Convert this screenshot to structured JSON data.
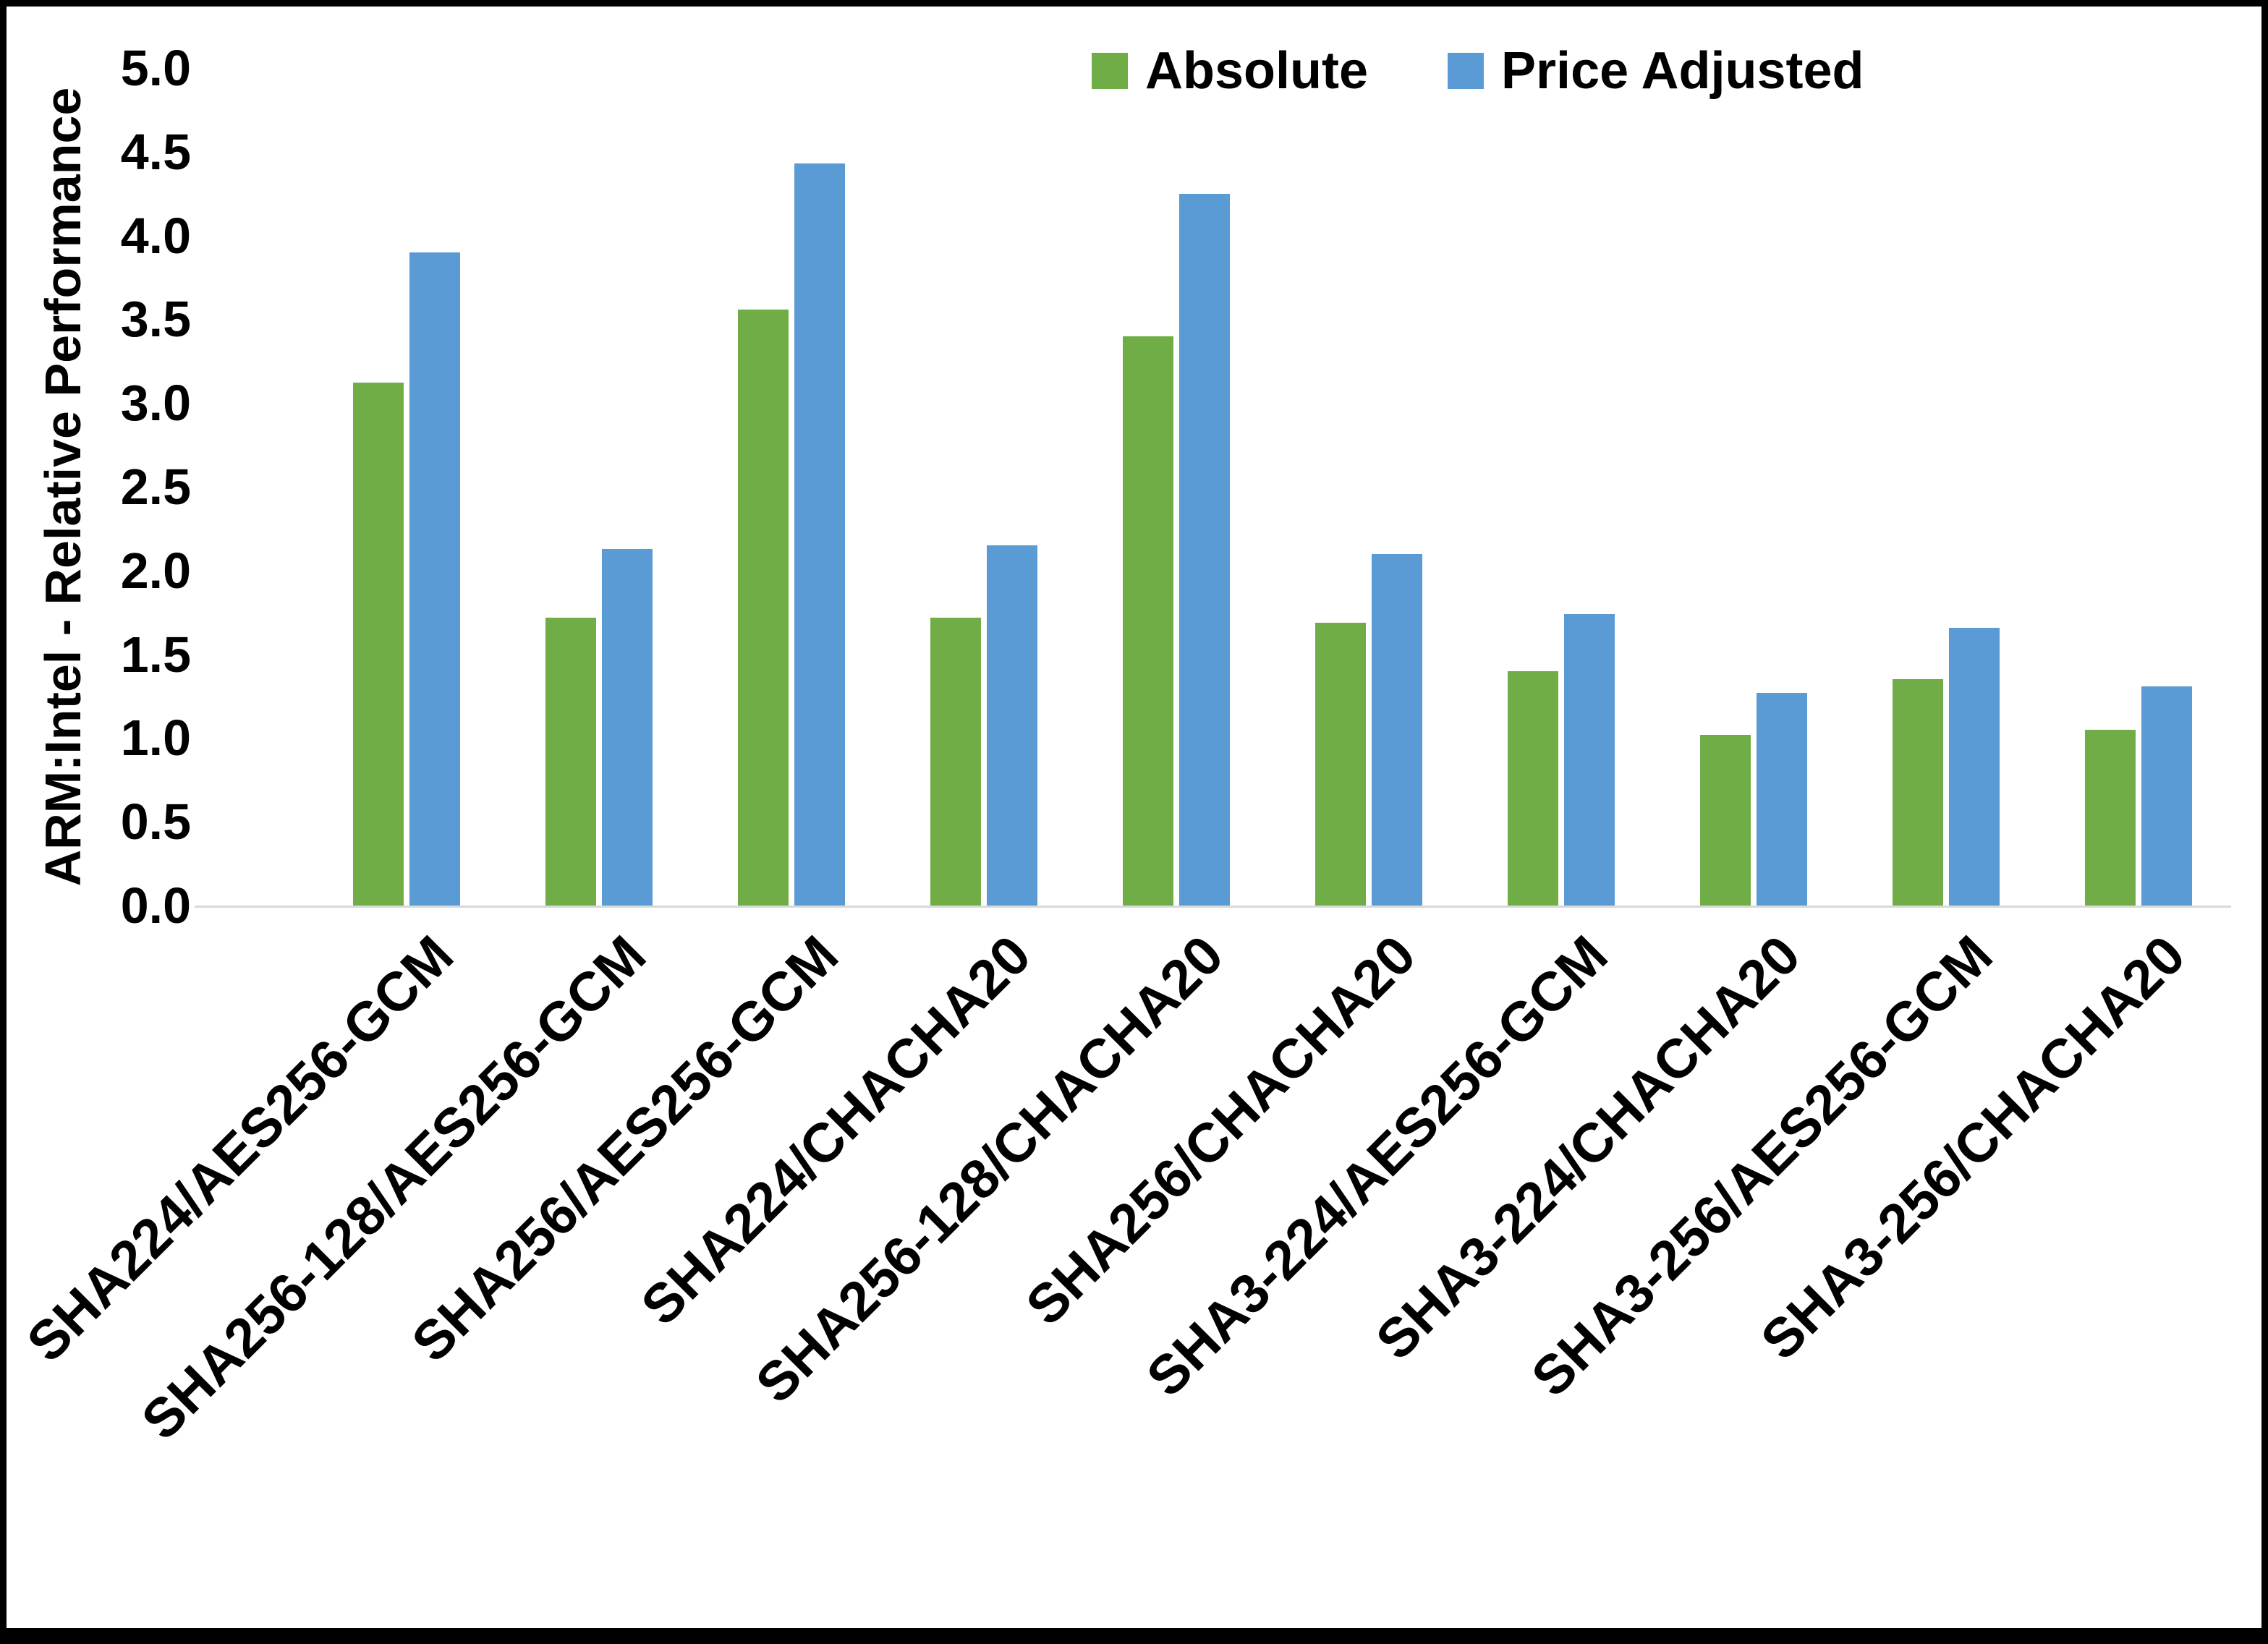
{
  "chart_data": {
    "type": "bar",
    "ylabel": "ARM:Intel - Relative Performance",
    "ylim": [
      0,
      5
    ],
    "ytick_step": 0.5,
    "grid": false,
    "legend_position": "top-right",
    "categories": [
      "SHA224/AES256-GCM",
      "SHA256-128/AES256-GCM",
      "SHA256/AES256-GCM",
      "SHA224/CHACHA20",
      "SHA256-128/CHACHA20",
      "SHA256/CHACHA20",
      "SHA3-224/AES256-GCM",
      "SHA3-224/CHACHA20",
      "SHA3-256/AES256-GCM",
      "SHA3-256/CHACHA20"
    ],
    "series": [
      {
        "name": "Absolute",
        "color": "#70AD47",
        "values": [
          3.12,
          1.72,
          3.56,
          1.72,
          3.4,
          1.69,
          1.4,
          1.02,
          1.35,
          1.05
        ]
      },
      {
        "name": "Price Adjusted",
        "color": "#5B9BD5",
        "values": [
          3.9,
          2.13,
          4.43,
          2.15,
          4.25,
          2.1,
          1.74,
          1.27,
          1.66,
          1.31
        ]
      }
    ]
  },
  "colors": {
    "axis_line": "#d9d9d9",
    "text": "#000000",
    "border": "#000000"
  }
}
